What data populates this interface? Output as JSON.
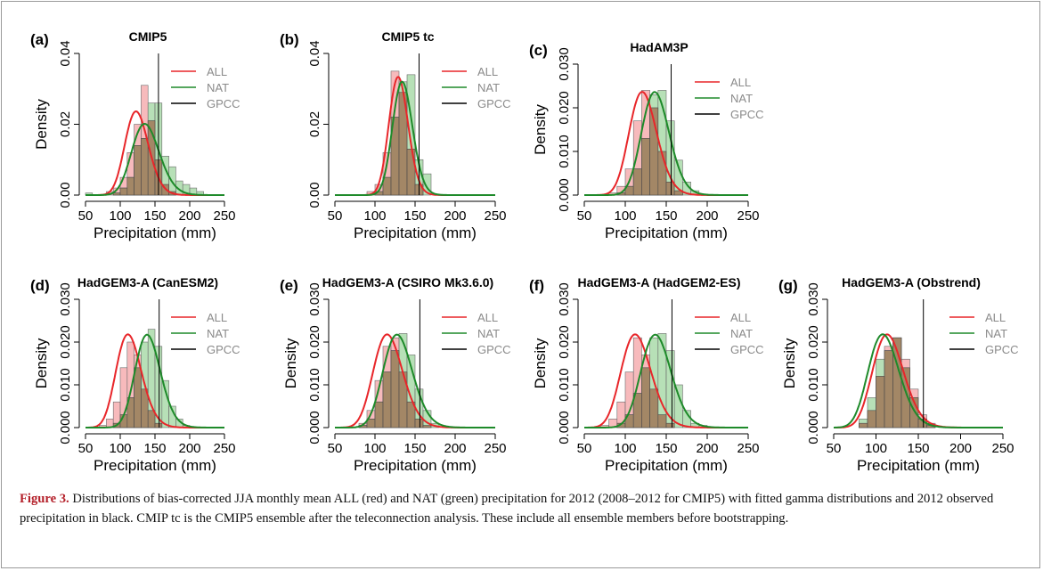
{
  "caption": {
    "label": "Figure 3.",
    "text": " Distributions of bias-corrected JJA monthly mean ALL (red) and NAT (green) precipitation for 2012 (2008–2012 for CMIP5) with fitted gamma distributions and 2012 observed precipitation in black. CMIP tc is the CMIP5 ensemble after the teleconnection analysis. These include all ensemble members before bootstrapping."
  },
  "colors": {
    "all": "#e8262a",
    "nat": "#1e8a2a",
    "gpcc": "#000000",
    "all_fill": "#f4a3a6",
    "nat_fill": "#9fd69f",
    "overlap_fill": "#a07a5a"
  },
  "chart_data": [
    {
      "type": "bar",
      "panel": "(a)",
      "title": "CMIP5",
      "xlabel": "Precipitation (mm)",
      "ylabel": "Density",
      "xlim": [
        50,
        250
      ],
      "ylim": [
        0,
        0.04
      ],
      "xticks": [
        "50",
        "100",
        "150",
        "200",
        "250"
      ],
      "yticks": [
        "0.00",
        "0.02",
        "0.04"
      ],
      "legend": [
        "ALL",
        "NAT",
        "GPCC"
      ],
      "legend_position": "top-right",
      "grid": false,
      "bin_edges": [
        50,
        60,
        70,
        80,
        90,
        100,
        110,
        120,
        130,
        140,
        150,
        160,
        170,
        180,
        190,
        200,
        210,
        220,
        230,
        240,
        250
      ],
      "series": [
        {
          "name": "ALL",
          "type": "histogram",
          "values": [
            0,
            0,
            0,
            0.001,
            0.002,
            0.005,
            0.012,
            0.02,
            0.031,
            0.021,
            0.01,
            0.003,
            0.001,
            0,
            0,
            0,
            0,
            0,
            0,
            0
          ]
        },
        {
          "name": "NAT",
          "type": "histogram",
          "values": [
            0.0006,
            0,
            0,
            0,
            0.0006,
            0.002,
            0.005,
            0.014,
            0.016,
            0.026,
            0.026,
            0.011,
            0.008,
            0.004,
            0.003,
            0.002,
            0.001,
            0,
            0,
            0
          ]
        },
        {
          "name": "ALL",
          "type": "gamma-fit",
          "mean": 125,
          "sd": 17
        },
        {
          "name": "NAT",
          "type": "gamma-fit",
          "mean": 138,
          "sd": 20
        },
        {
          "name": "GPCC",
          "type": "vline",
          "x": 155
        }
      ]
    },
    {
      "type": "bar",
      "panel": "(b)",
      "title": "CMIP5 tc",
      "xlabel": "Precipitation (mm)",
      "ylabel": "",
      "xlim": [
        50,
        250
      ],
      "ylim": [
        0,
        0.04
      ],
      "xticks": [
        "50",
        "100",
        "150",
        "200",
        "250"
      ],
      "yticks": [
        "0.00",
        "0.02",
        "0.04"
      ],
      "legend": [
        "ALL",
        "NAT",
        "GPCC"
      ],
      "legend_position": "top-right",
      "grid": false,
      "bin_edges": [
        50,
        60,
        70,
        80,
        90,
        100,
        110,
        120,
        130,
        140,
        150,
        160,
        170,
        180,
        190,
        200,
        210,
        220,
        230,
        240,
        250
      ],
      "series": [
        {
          "name": "ALL",
          "type": "histogram",
          "values": [
            0,
            0,
            0,
            0,
            0.001,
            0.003,
            0.012,
            0.035,
            0.029,
            0.013,
            0.003,
            0,
            0,
            0,
            0,
            0,
            0,
            0,
            0,
            0
          ]
        },
        {
          "name": "NAT",
          "type": "histogram",
          "values": [
            0,
            0,
            0,
            0,
            0,
            0.001,
            0.005,
            0.022,
            0.032,
            0.034,
            0.01,
            0.006,
            0,
            0,
            0,
            0,
            0,
            0,
            0,
            0
          ]
        },
        {
          "name": "ALL",
          "type": "gamma-fit",
          "mean": 130,
          "sd": 12
        },
        {
          "name": "NAT",
          "type": "gamma-fit",
          "mean": 135,
          "sd": 12.5
        },
        {
          "name": "GPCC",
          "type": "vline",
          "x": 155
        }
      ]
    },
    {
      "type": "bar",
      "panel": "(c)",
      "title": "HadAM3P",
      "xlabel": "Precipitation (mm)",
      "ylabel": "Density",
      "xlim": [
        50,
        250
      ],
      "ylim": [
        0,
        0.03
      ],
      "xticks": [
        "50",
        "100",
        "150",
        "200",
        "250"
      ],
      "yticks": [
        "0.000",
        "0.010",
        "0.020",
        "0.030"
      ],
      "legend": [
        "ALL",
        "NAT",
        "GPCC"
      ],
      "legend_position": "top-right",
      "grid": false,
      "bin_edges": [
        50,
        60,
        70,
        80,
        90,
        100,
        110,
        120,
        130,
        140,
        150,
        160,
        170,
        180,
        190,
        200,
        210,
        220,
        230,
        240,
        250
      ],
      "series": [
        {
          "name": "ALL",
          "type": "histogram",
          "values": [
            0,
            0,
            0,
            0.0005,
            0.002,
            0.006,
            0.017,
            0.024,
            0.02,
            0.01,
            0.003,
            0.001,
            0,
            0,
            0,
            0,
            0,
            0,
            0,
            0
          ]
        },
        {
          "name": "NAT",
          "type": "histogram",
          "values": [
            0,
            0,
            0,
            0,
            0.0005,
            0.002,
            0.006,
            0.013,
            0.023,
            0.024,
            0.017,
            0.008,
            0.003,
            0.001,
            0,
            0,
            0,
            0,
            0,
            0
          ]
        },
        {
          "name": "ALL",
          "type": "gamma-fit",
          "mean": 123,
          "sd": 17
        },
        {
          "name": "NAT",
          "type": "gamma-fit",
          "mean": 138,
          "sd": 17
        },
        {
          "name": "GPCC",
          "type": "vline",
          "x": 156
        }
      ]
    },
    {
      "type": "bar",
      "panel": "(d)",
      "title": "HadGEM3-A (CanESM2)",
      "xlabel": "Precipitation (mm)",
      "ylabel": "Density",
      "xlim": [
        50,
        250
      ],
      "ylim": [
        0,
        0.03
      ],
      "xticks": [
        "50",
        "100",
        "150",
        "200",
        "250"
      ],
      "yticks": [
        "0.000",
        "0.010",
        "0.020",
        "0.030"
      ],
      "legend": [
        "ALL",
        "NAT",
        "GPCC"
      ],
      "legend_position": "top-right",
      "grid": false,
      "bin_edges": [
        50,
        60,
        70,
        80,
        90,
        100,
        110,
        120,
        130,
        140,
        150,
        160,
        170,
        180,
        190,
        200,
        210,
        220,
        230,
        240,
        250
      ],
      "series": [
        {
          "name": "ALL",
          "type": "histogram",
          "values": [
            0,
            0,
            0.0005,
            0.002,
            0.006,
            0.014,
            0.02,
            0.017,
            0.009,
            0.004,
            0.001,
            0,
            0,
            0,
            0,
            0,
            0,
            0,
            0,
            0
          ]
        },
        {
          "name": "NAT",
          "type": "histogram",
          "values": [
            0,
            0,
            0,
            0,
            0.001,
            0.003,
            0.007,
            0.014,
            0.02,
            0.023,
            0.019,
            0.011,
            0.005,
            0.002,
            0.0005,
            0,
            0,
            0,
            0,
            0
          ]
        },
        {
          "name": "ALL",
          "type": "gamma-fit",
          "mean": 114,
          "sd": 18.5
        },
        {
          "name": "NAT",
          "type": "gamma-fit",
          "mean": 141,
          "sd": 18.5
        },
        {
          "name": "GPCC",
          "type": "vline",
          "x": 156
        }
      ]
    },
    {
      "type": "bar",
      "panel": "(e)",
      "title": "HadGEM3-A (CSIRO Mk3.6.0)",
      "xlabel": "Precipitation (mm)",
      "ylabel": "Density",
      "xlim": [
        50,
        250
      ],
      "ylim": [
        0,
        0.03
      ],
      "xticks": [
        "50",
        "100",
        "150",
        "200",
        "250"
      ],
      "yticks": [
        "0.000",
        "0.010",
        "0.020",
        "0.030"
      ],
      "legend": [
        "ALL",
        "NAT",
        "GPCC"
      ],
      "legend_position": "top-right",
      "grid": false,
      "bin_edges": [
        50,
        60,
        70,
        80,
        90,
        100,
        110,
        120,
        130,
        140,
        150,
        160,
        170,
        180,
        190,
        200,
        210,
        220,
        230,
        240,
        250
      ],
      "series": [
        {
          "name": "ALL",
          "type": "histogram",
          "values": [
            0,
            0,
            0,
            0.001,
            0.004,
            0.011,
            0.019,
            0.021,
            0.013,
            0.006,
            0.002,
            0.0005,
            0,
            0,
            0,
            0,
            0,
            0,
            0,
            0
          ]
        },
        {
          "name": "NAT",
          "type": "histogram",
          "values": [
            0,
            0,
            0,
            0.0005,
            0.002,
            0.006,
            0.013,
            0.018,
            0.022,
            0.017,
            0.009,
            0.004,
            0.001,
            0,
            0,
            0,
            0,
            0,
            0,
            0
          ]
        },
        {
          "name": "ALL",
          "type": "gamma-fit",
          "mean": 118,
          "sd": 18.5
        },
        {
          "name": "NAT",
          "type": "gamma-fit",
          "mean": 130,
          "sd": 18.5
        },
        {
          "name": "GPCC",
          "type": "vline",
          "x": 156
        }
      ]
    },
    {
      "type": "bar",
      "panel": "(f)",
      "title": "HadGEM3-A (HadGEM2-ES)",
      "xlabel": "Precipitation (mm)",
      "ylabel": "Density",
      "xlim": [
        50,
        250
      ],
      "ylim": [
        0,
        0.03
      ],
      "xticks": [
        "50",
        "100",
        "150",
        "200",
        "250"
      ],
      "yticks": [
        "0.000",
        "0.010",
        "0.020",
        "0.030"
      ],
      "legend": [
        "ALL",
        "NAT",
        "GPCC"
      ],
      "legend_position": "top-right",
      "grid": false,
      "bin_edges": [
        50,
        60,
        70,
        80,
        90,
        100,
        110,
        120,
        130,
        140,
        150,
        160,
        170,
        180,
        190,
        200,
        210,
        220,
        230,
        240,
        250
      ],
      "series": [
        {
          "name": "ALL",
          "type": "histogram",
          "values": [
            0,
            0,
            0.0005,
            0.002,
            0.006,
            0.013,
            0.021,
            0.017,
            0.009,
            0.003,
            0.001,
            0,
            0,
            0,
            0,
            0,
            0,
            0,
            0,
            0
          ]
        },
        {
          "name": "NAT",
          "type": "histogram",
          "values": [
            0,
            0,
            0,
            0,
            0.001,
            0.003,
            0.008,
            0.014,
            0.021,
            0.022,
            0.018,
            0.01,
            0.004,
            0.001,
            0.0005,
            0,
            0,
            0,
            0,
            0
          ]
        },
        {
          "name": "ALL",
          "type": "gamma-fit",
          "mean": 115,
          "sd": 18.5
        },
        {
          "name": "NAT",
          "type": "gamma-fit",
          "mean": 139,
          "sd": 18.5
        },
        {
          "name": "GPCC",
          "type": "vline",
          "x": 157
        }
      ]
    },
    {
      "type": "bar",
      "panel": "(g)",
      "title": "HadGEM3-A (Obstrend)",
      "xlabel": "Precipitation (mm)",
      "ylabel": "Density",
      "xlim": [
        50,
        250
      ],
      "ylim": [
        0,
        0.03
      ],
      "xticks": [
        "50",
        "100",
        "150",
        "200",
        "250"
      ],
      "yticks": [
        "0.000",
        "0.010",
        "0.020",
        "0.030"
      ],
      "legend": [
        "ALL",
        "NAT",
        "GPCC"
      ],
      "legend_position": "top-right",
      "grid": false,
      "bin_edges": [
        50,
        60,
        70,
        80,
        90,
        100,
        110,
        120,
        130,
        140,
        150,
        160,
        170,
        180,
        190,
        200,
        210,
        220,
        230,
        240,
        250
      ],
      "series": [
        {
          "name": "ALL",
          "type": "histogram",
          "values": [
            0,
            0,
            0,
            0.001,
            0.004,
            0.012,
            0.019,
            0.021,
            0.016,
            0.009,
            0.003,
            0.001,
            0,
            0,
            0,
            0,
            0,
            0,
            0,
            0
          ]
        },
        {
          "name": "NAT",
          "type": "histogram",
          "values": [
            0,
            0,
            0,
            0.002,
            0.007,
            0.016,
            0.018,
            0.021,
            0.014,
            0.007,
            0.002,
            0.0005,
            0,
            0,
            0,
            0,
            0,
            0,
            0,
            0
          ]
        },
        {
          "name": "ALL",
          "type": "gamma-fit",
          "mean": 116,
          "sd": 18.5
        },
        {
          "name": "NAT",
          "type": "gamma-fit",
          "mean": 111,
          "sd": 18.5
        },
        {
          "name": "GPCC",
          "type": "vline",
          "x": 156
        }
      ]
    }
  ]
}
